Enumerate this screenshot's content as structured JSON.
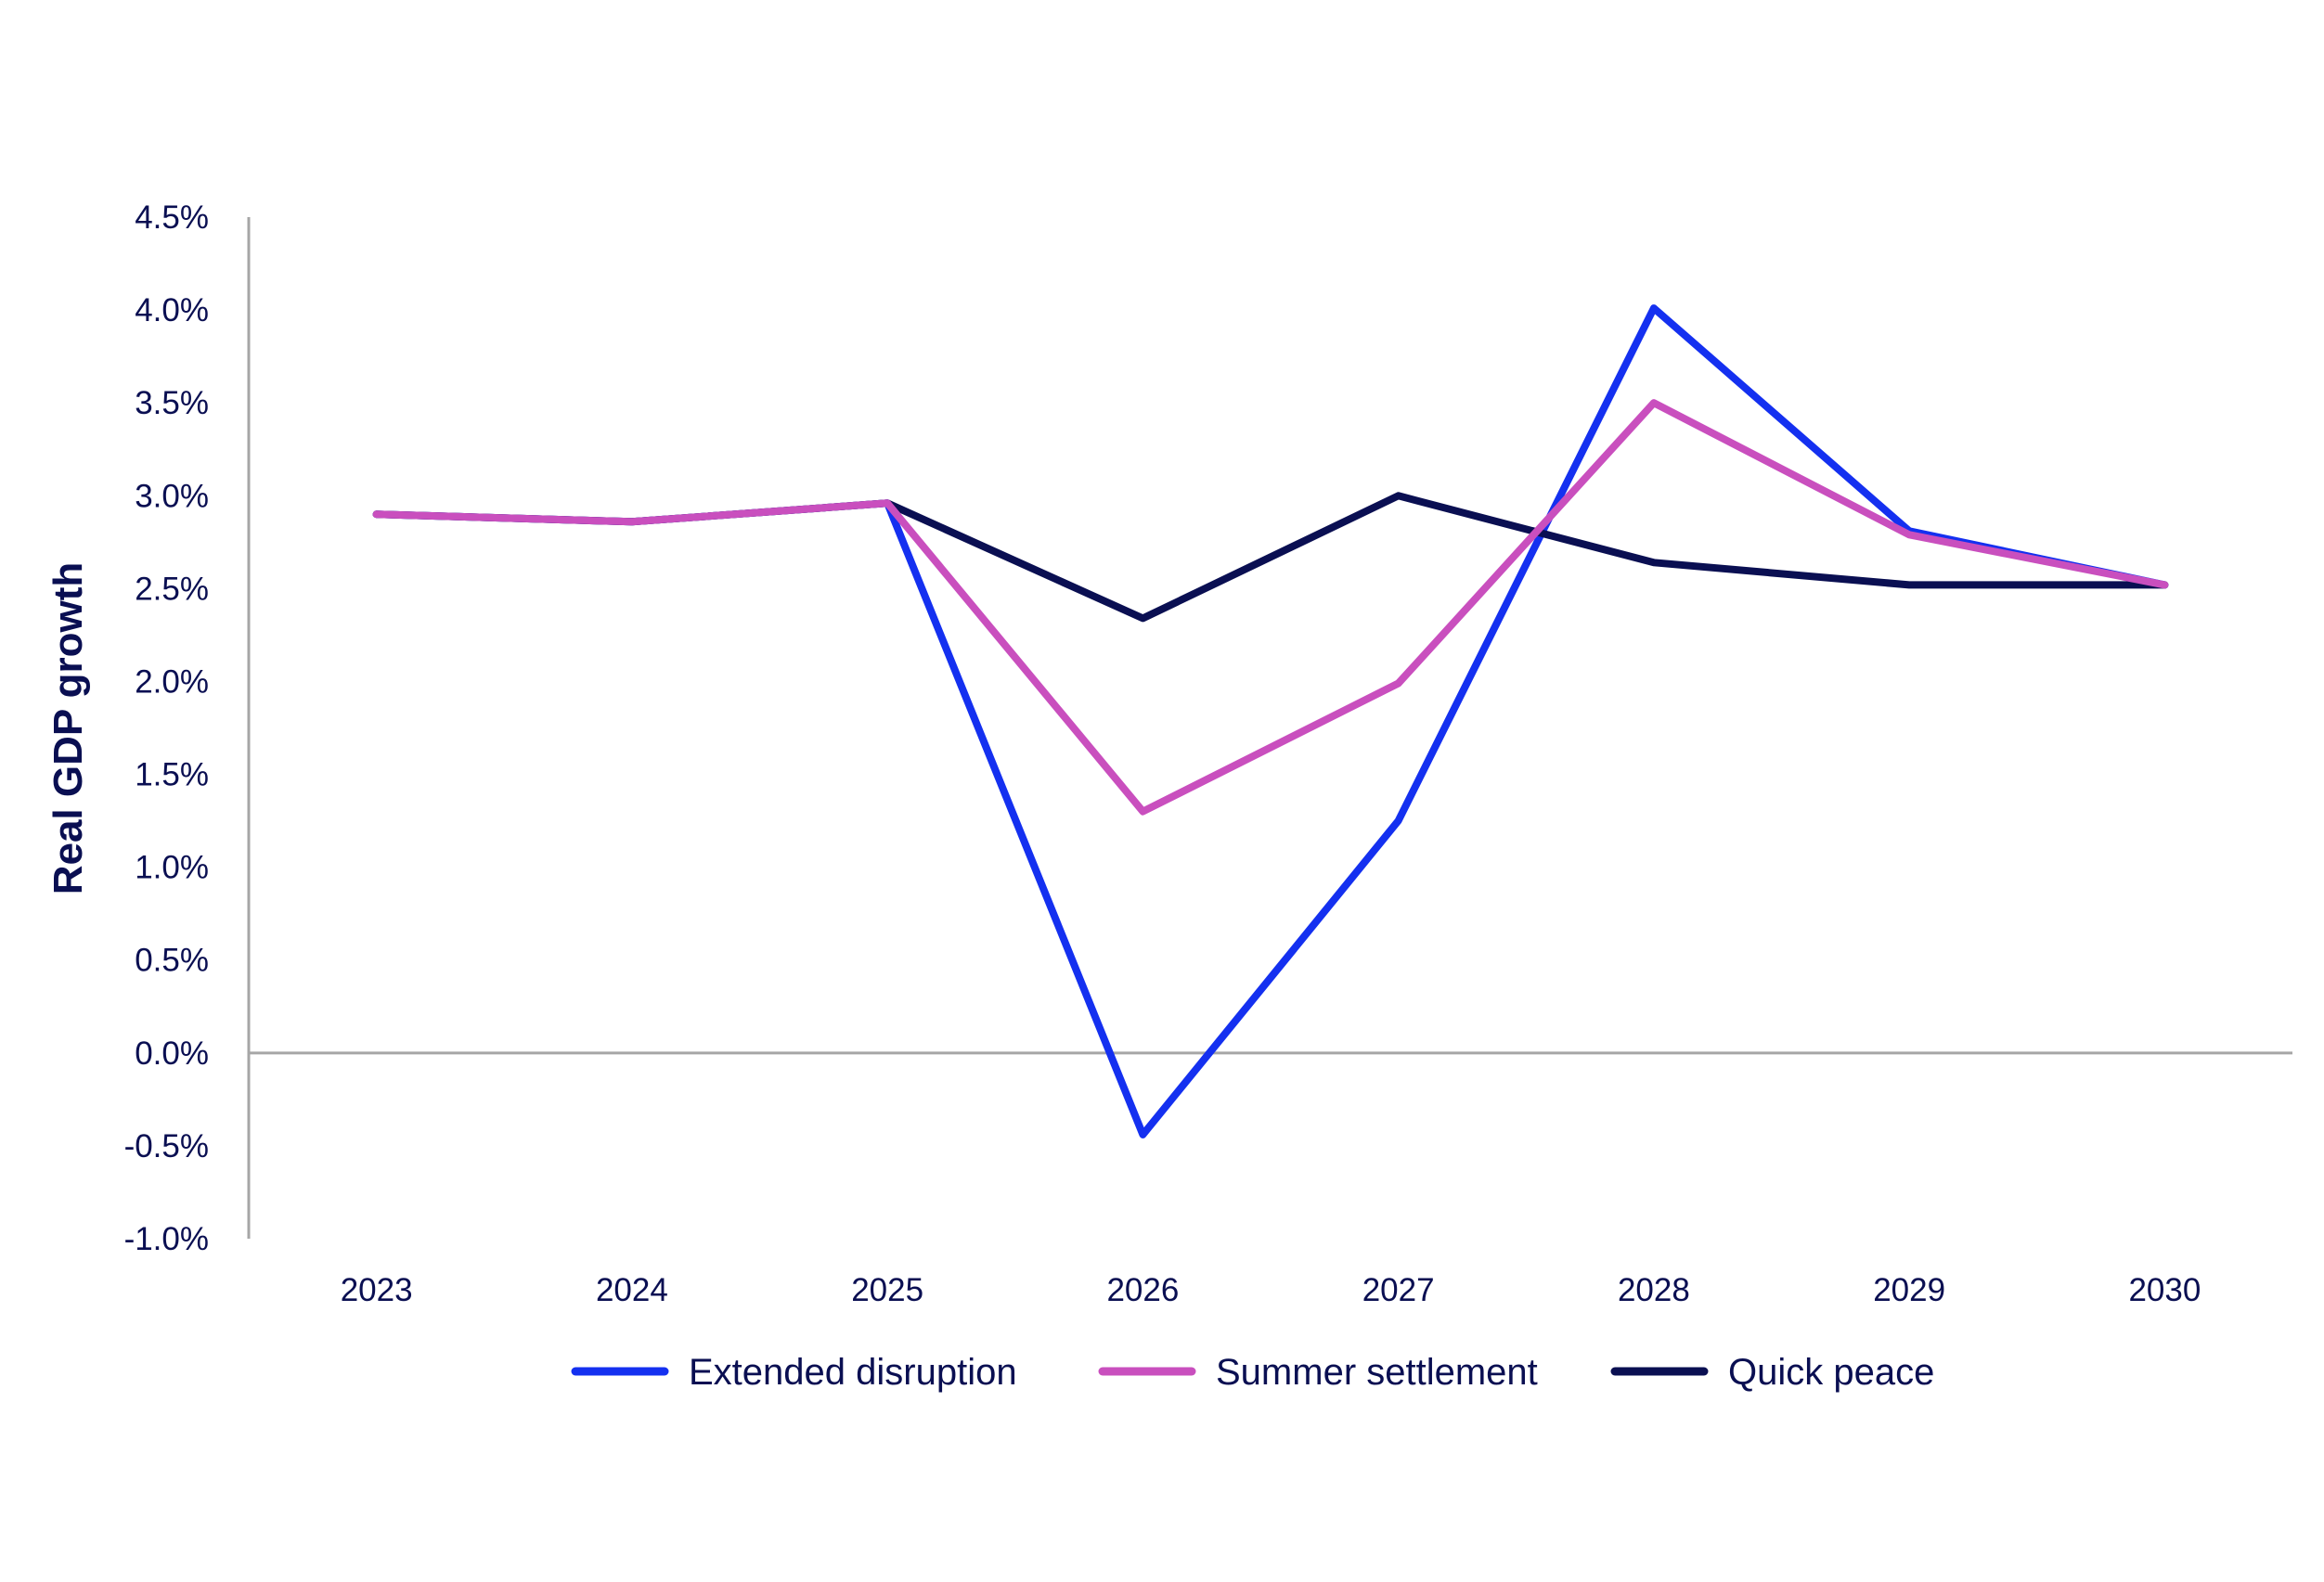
{
  "chart_data": {
    "type": "line",
    "title": "",
    "xlabel": "",
    "ylabel": "Real GDP growth",
    "categories": [
      "2023",
      "2024",
      "2025",
      "2026",
      "2027",
      "2028",
      "2029",
      "2030"
    ],
    "ylim": [
      -1.0,
      4.5
    ],
    "yticks": [
      4.5,
      4.0,
      3.5,
      3.0,
      2.5,
      2.0,
      1.5,
      1.0,
      0.5,
      0.0,
      -0.5,
      -1.0
    ],
    "ytick_labels": [
      "4.5%",
      "4.0%",
      "3.5%",
      "3.0%",
      "2.5%",
      "2.0%",
      "1.5%",
      "1.0%",
      "0.5%",
      "0.0%",
      "-0.5%",
      "-1.0%"
    ],
    "grid": false,
    "legend_position": "bottom-center",
    "series": [
      {
        "name": "Extended disruption",
        "color": "#1430f0",
        "values": [
          2.9,
          2.86,
          2.96,
          -0.44,
          1.25,
          4.01,
          2.81,
          2.52
        ]
      },
      {
        "name": "Summer settlement",
        "color": "#c94fbe",
        "values": [
          2.9,
          2.86,
          2.96,
          1.3,
          1.99,
          3.5,
          2.79,
          2.52
        ]
      },
      {
        "name": "Quick peace",
        "color": "#0a0f52",
        "values": [
          2.9,
          2.86,
          2.96,
          2.34,
          3.0,
          2.64,
          2.52,
          2.52
        ]
      }
    ]
  }
}
